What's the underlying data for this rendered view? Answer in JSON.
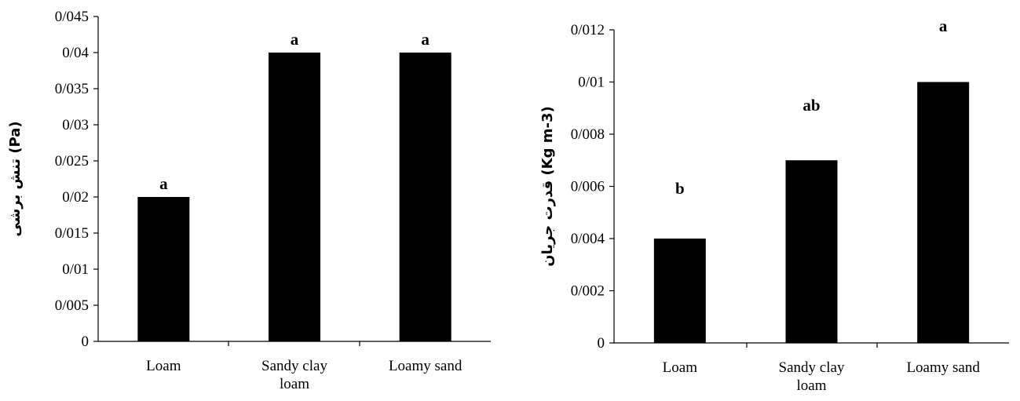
{
  "chart_data": [
    {
      "type": "bar",
      "categories": [
        "Loam",
        "Sandy clay loam",
        "Loamy sand"
      ],
      "category_lines": [
        [
          "Loam"
        ],
        [
          "Sandy clay",
          "loam"
        ],
        [
          "Loamy sand"
        ]
      ],
      "values": [
        0.02,
        0.04,
        0.04
      ],
      "significance_labels": [
        "a",
        "a",
        "a"
      ],
      "ylabel": "تنش برشی (Pa)",
      "ylim": [
        0,
        0.045
      ],
      "yticks": [
        "0",
        "0/005",
        "0/01",
        "0/015",
        "0/02",
        "0/025",
        "0/03",
        "0/035",
        "0/04",
        "0/045"
      ],
      "bar_color": "#000000",
      "grid": false,
      "legend": "none"
    },
    {
      "type": "bar",
      "categories": [
        "Loam",
        "Sandy clay loam",
        "Loamy sand"
      ],
      "category_lines": [
        [
          "Loam"
        ],
        [
          "Sandy clay",
          "loam"
        ],
        [
          "Loamy sand"
        ]
      ],
      "values": [
        0.004,
        0.007,
        0.01
      ],
      "significance_labels": [
        "b",
        "ab",
        "a"
      ],
      "ylabel": "قدرت جریان (Kg m-3)",
      "ylim": [
        0,
        0.012
      ],
      "yticks": [
        "0",
        "0/002",
        "0/004",
        "0/006",
        "0/008",
        "0/01",
        "0/012"
      ],
      "bar_color": "#000000",
      "grid": false,
      "legend": "none"
    }
  ]
}
